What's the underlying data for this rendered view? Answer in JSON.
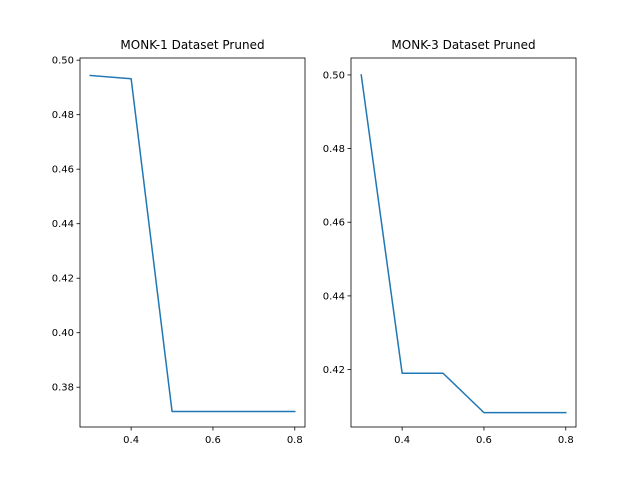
{
  "chart_data": [
    {
      "type": "line",
      "title": "MONK-1 Dataset Pruned",
      "xlabel": "",
      "ylabel": "",
      "xlim": [
        0.275,
        0.825
      ],
      "ylim": [
        0.3654,
        0.5008
      ],
      "x_ticks": [
        0.4,
        0.6,
        0.8
      ],
      "x_tick_labels": [
        "0.4",
        "0.6",
        "0.8"
      ],
      "y_ticks": [
        0.38,
        0.4,
        0.42,
        0.44,
        0.46,
        0.48,
        0.5
      ],
      "y_tick_labels": [
        "0.38",
        "0.40",
        "0.42",
        "0.44",
        "0.46",
        "0.48",
        "0.50"
      ],
      "grid": false,
      "series": [
        {
          "color": "#1f77b4",
          "x": [
            0.3,
            0.4,
            0.5,
            0.6,
            0.7,
            0.8
          ],
          "y": [
            0.4944,
            0.4932,
            0.3711,
            0.3711,
            0.3711,
            0.3711
          ]
        }
      ]
    },
    {
      "type": "line",
      "title": "MONK-3 Dataset Pruned",
      "xlabel": "",
      "ylabel": "",
      "xlim": [
        0.275,
        0.825
      ],
      "ylim": [
        0.4044,
        0.5046
      ],
      "x_ticks": [
        0.4,
        0.6,
        0.8
      ],
      "x_tick_labels": [
        "0.4",
        "0.6",
        "0.8"
      ],
      "y_ticks": [
        0.42,
        0.44,
        0.46,
        0.48,
        0.5
      ],
      "y_tick_labels": [
        "0.42",
        "0.44",
        "0.46",
        "0.48",
        "0.50"
      ],
      "grid": false,
      "series": [
        {
          "color": "#1f77b4",
          "x": [
            0.3,
            0.4,
            0.5,
            0.6,
            0.7,
            0.8
          ],
          "y": [
            0.5,
            0.419,
            0.419,
            0.4083,
            0.4083,
            0.4083
          ]
        }
      ]
    }
  ]
}
